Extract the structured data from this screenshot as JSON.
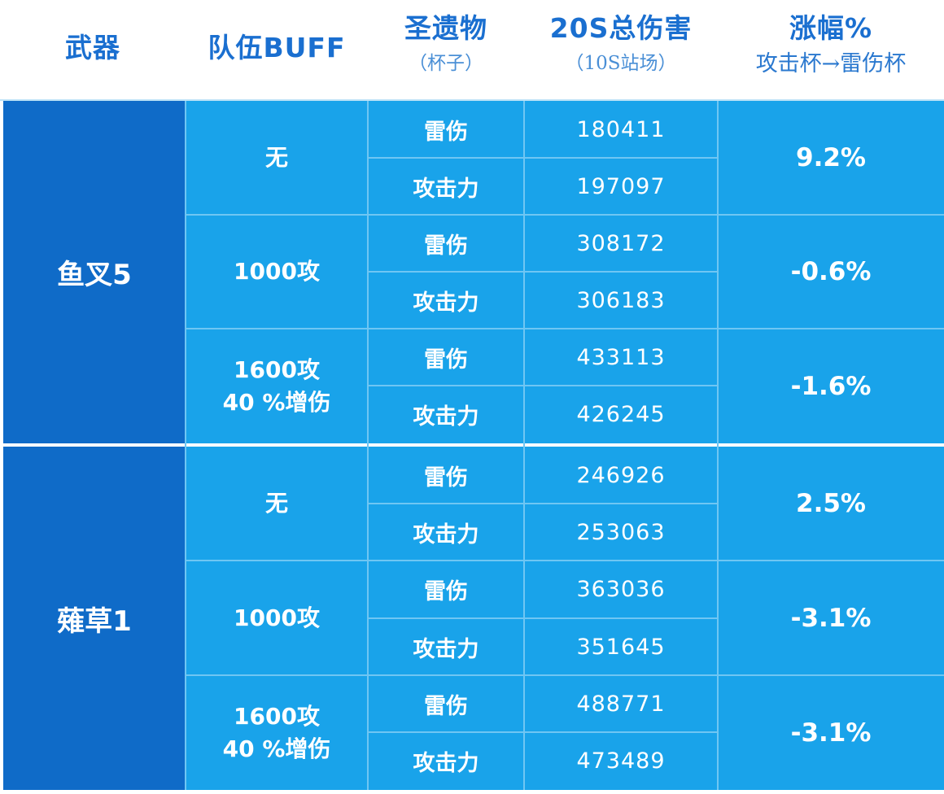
{
  "header": {
    "weapon": "武器",
    "team_buff": "队伍BUFF",
    "artifact": "圣遗物",
    "artifact_sub": "（杯子）",
    "damage": "20S总伤害",
    "damage_sub": "（10S站场）",
    "increase": "涨幅%",
    "increase_sub": "攻击杯→雷伤杯"
  },
  "groups": [
    {
      "weapon": "鱼叉5",
      "rows": [
        {
          "buff": [
            "无"
          ],
          "items": [
            {
              "artifact": "雷伤",
              "damage": "180411"
            },
            {
              "artifact": "攻击力",
              "damage": "197097"
            }
          ],
          "increase": "9.2%"
        },
        {
          "buff": [
            "1000攻"
          ],
          "items": [
            {
              "artifact": "雷伤",
              "damage": "308172"
            },
            {
              "artifact": "攻击力",
              "damage": "306183"
            }
          ],
          "increase": "-0.6%"
        },
        {
          "buff": [
            "1600攻",
            "40 %增伤"
          ],
          "items": [
            {
              "artifact": "雷伤",
              "damage": "433113"
            },
            {
              "artifact": "攻击力",
              "damage": "426245"
            }
          ],
          "increase": "-1.6%"
        }
      ]
    },
    {
      "weapon": "薙草1",
      "rows": [
        {
          "buff": [
            "无"
          ],
          "items": [
            {
              "artifact": "雷伤",
              "damage": "246926"
            },
            {
              "artifact": "攻击力",
              "damage": "253063"
            }
          ],
          "increase": "2.5%"
        },
        {
          "buff": [
            "1000攻"
          ],
          "items": [
            {
              "artifact": "雷伤",
              "damage": "363036"
            },
            {
              "artifact": "攻击力",
              "damage": "351645"
            }
          ],
          "increase": "-3.1%"
        },
        {
          "buff": [
            "1600攻",
            "40 %增伤"
          ],
          "items": [
            {
              "artifact": "雷伤",
              "damage": "488771"
            },
            {
              "artifact": "攻击力",
              "damage": "473489"
            }
          ],
          "increase": "-3.1%"
        }
      ]
    }
  ],
  "colors": {
    "header_text": "#1a6fd0",
    "weapon_bg": "#0f6bc8",
    "cell_bg": "#19a3ea",
    "grid_line": "#6fc6f3"
  }
}
